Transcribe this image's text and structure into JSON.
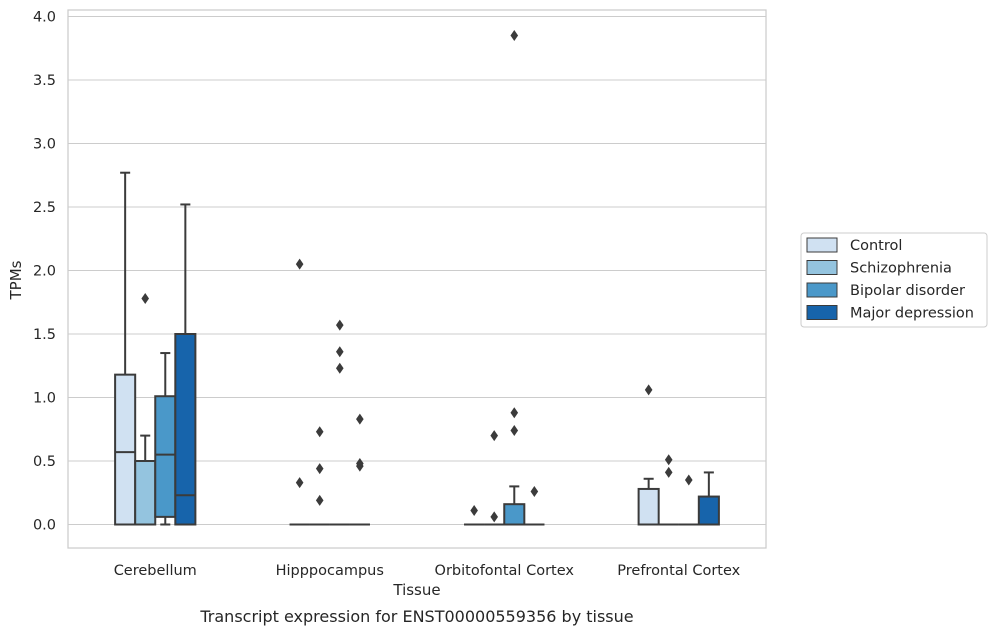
{
  "chart_data": {
    "type": "box",
    "xlabel": "Tissue",
    "ylabel": "TPMs",
    "caption": "Transcript expression for ENST00000559356 by tissue",
    "ylim": [
      -0.18,
      4.05
    ],
    "yticks": [
      "0.0",
      "0.5",
      "1.0",
      "1.5",
      "2.0",
      "2.5",
      "3.0",
      "3.5",
      "4.0"
    ],
    "ytick_values": [
      0,
      0.5,
      1.0,
      1.5,
      2.0,
      2.5,
      3.0,
      3.5,
      4.0
    ],
    "grid": "horizontal",
    "legend_position": "right",
    "categories": [
      "Cerebellum",
      "Hipppocampus",
      "Orbitofontal Cortex",
      "Prefrontal Cortex"
    ],
    "series": [
      {
        "name": "Control",
        "color": "#d0e1f2",
        "boxes": [
          {
            "q1": 0,
            "median": 0.57,
            "q3": 1.18,
            "whisker_low": 0,
            "whisker_high": 2.77,
            "outliers": []
          },
          {
            "q1": 0,
            "median": 0,
            "q3": 0,
            "whisker_low": 0,
            "whisker_high": 0,
            "outliers": [
              2.05,
              0.33
            ]
          },
          {
            "q1": 0,
            "median": 0,
            "q3": 0,
            "whisker_low": 0,
            "whisker_high": 0,
            "outliers": [
              0.11
            ]
          },
          {
            "q1": 0,
            "median": 0,
            "q3": 0.28,
            "whisker_low": 0,
            "whisker_high": 0.36,
            "outliers": [
              1.06
            ]
          }
        ]
      },
      {
        "name": "Schizophrenia",
        "color": "#94c4df",
        "boxes": [
          {
            "q1": 0,
            "median": 0,
            "q3": 0.5,
            "whisker_low": 0,
            "whisker_high": 0.7,
            "outliers": [
              1.78
            ]
          },
          {
            "q1": 0,
            "median": 0,
            "q3": 0,
            "whisker_low": 0,
            "whisker_high": 0,
            "outliers": [
              0.73,
              0.44,
              0.19
            ]
          },
          {
            "q1": 0,
            "median": 0,
            "q3": 0,
            "whisker_low": 0,
            "whisker_high": 0,
            "outliers": [
              0.7,
              0.06
            ]
          },
          {
            "q1": 0,
            "median": 0,
            "q3": 0,
            "whisker_low": 0,
            "whisker_high": 0,
            "outliers": [
              0.51,
              0.41
            ]
          }
        ]
      },
      {
        "name": "Bipolar disorder",
        "color": "#4a98c9",
        "boxes": [
          {
            "q1": 0.06,
            "median": 0.55,
            "q3": 1.01,
            "whisker_low": 0,
            "whisker_high": 1.35,
            "outliers": []
          },
          {
            "q1": 0,
            "median": 0,
            "q3": 0,
            "whisker_low": 0,
            "whisker_high": 0,
            "outliers": [
              1.57,
              1.36,
              1.23
            ]
          },
          {
            "q1": 0,
            "median": 0,
            "q3": 0.16,
            "whisker_low": 0,
            "whisker_high": 0.3,
            "outliers": [
              3.85,
              0.88,
              0.74
            ]
          },
          {
            "q1": 0,
            "median": 0,
            "q3": 0,
            "whisker_low": 0,
            "whisker_high": 0,
            "outliers": [
              0.35
            ]
          }
        ]
      },
      {
        "name": "Major depression",
        "color": "#1764ab",
        "boxes": [
          {
            "q1": 0,
            "median": 0.23,
            "q3": 1.5,
            "whisker_low": 0,
            "whisker_high": 2.52,
            "outliers": []
          },
          {
            "q1": 0,
            "median": 0,
            "q3": 0,
            "whisker_low": 0,
            "whisker_high": 0,
            "outliers": [
              0.83,
              0.48,
              0.46
            ]
          },
          {
            "q1": 0,
            "median": 0,
            "q3": 0,
            "whisker_low": 0,
            "whisker_high": 0,
            "outliers": [
              0.26
            ]
          },
          {
            "q1": 0,
            "median": 0,
            "q3": 0.22,
            "whisker_low": 0,
            "whisker_high": 0.41,
            "outliers": []
          }
        ]
      }
    ]
  }
}
